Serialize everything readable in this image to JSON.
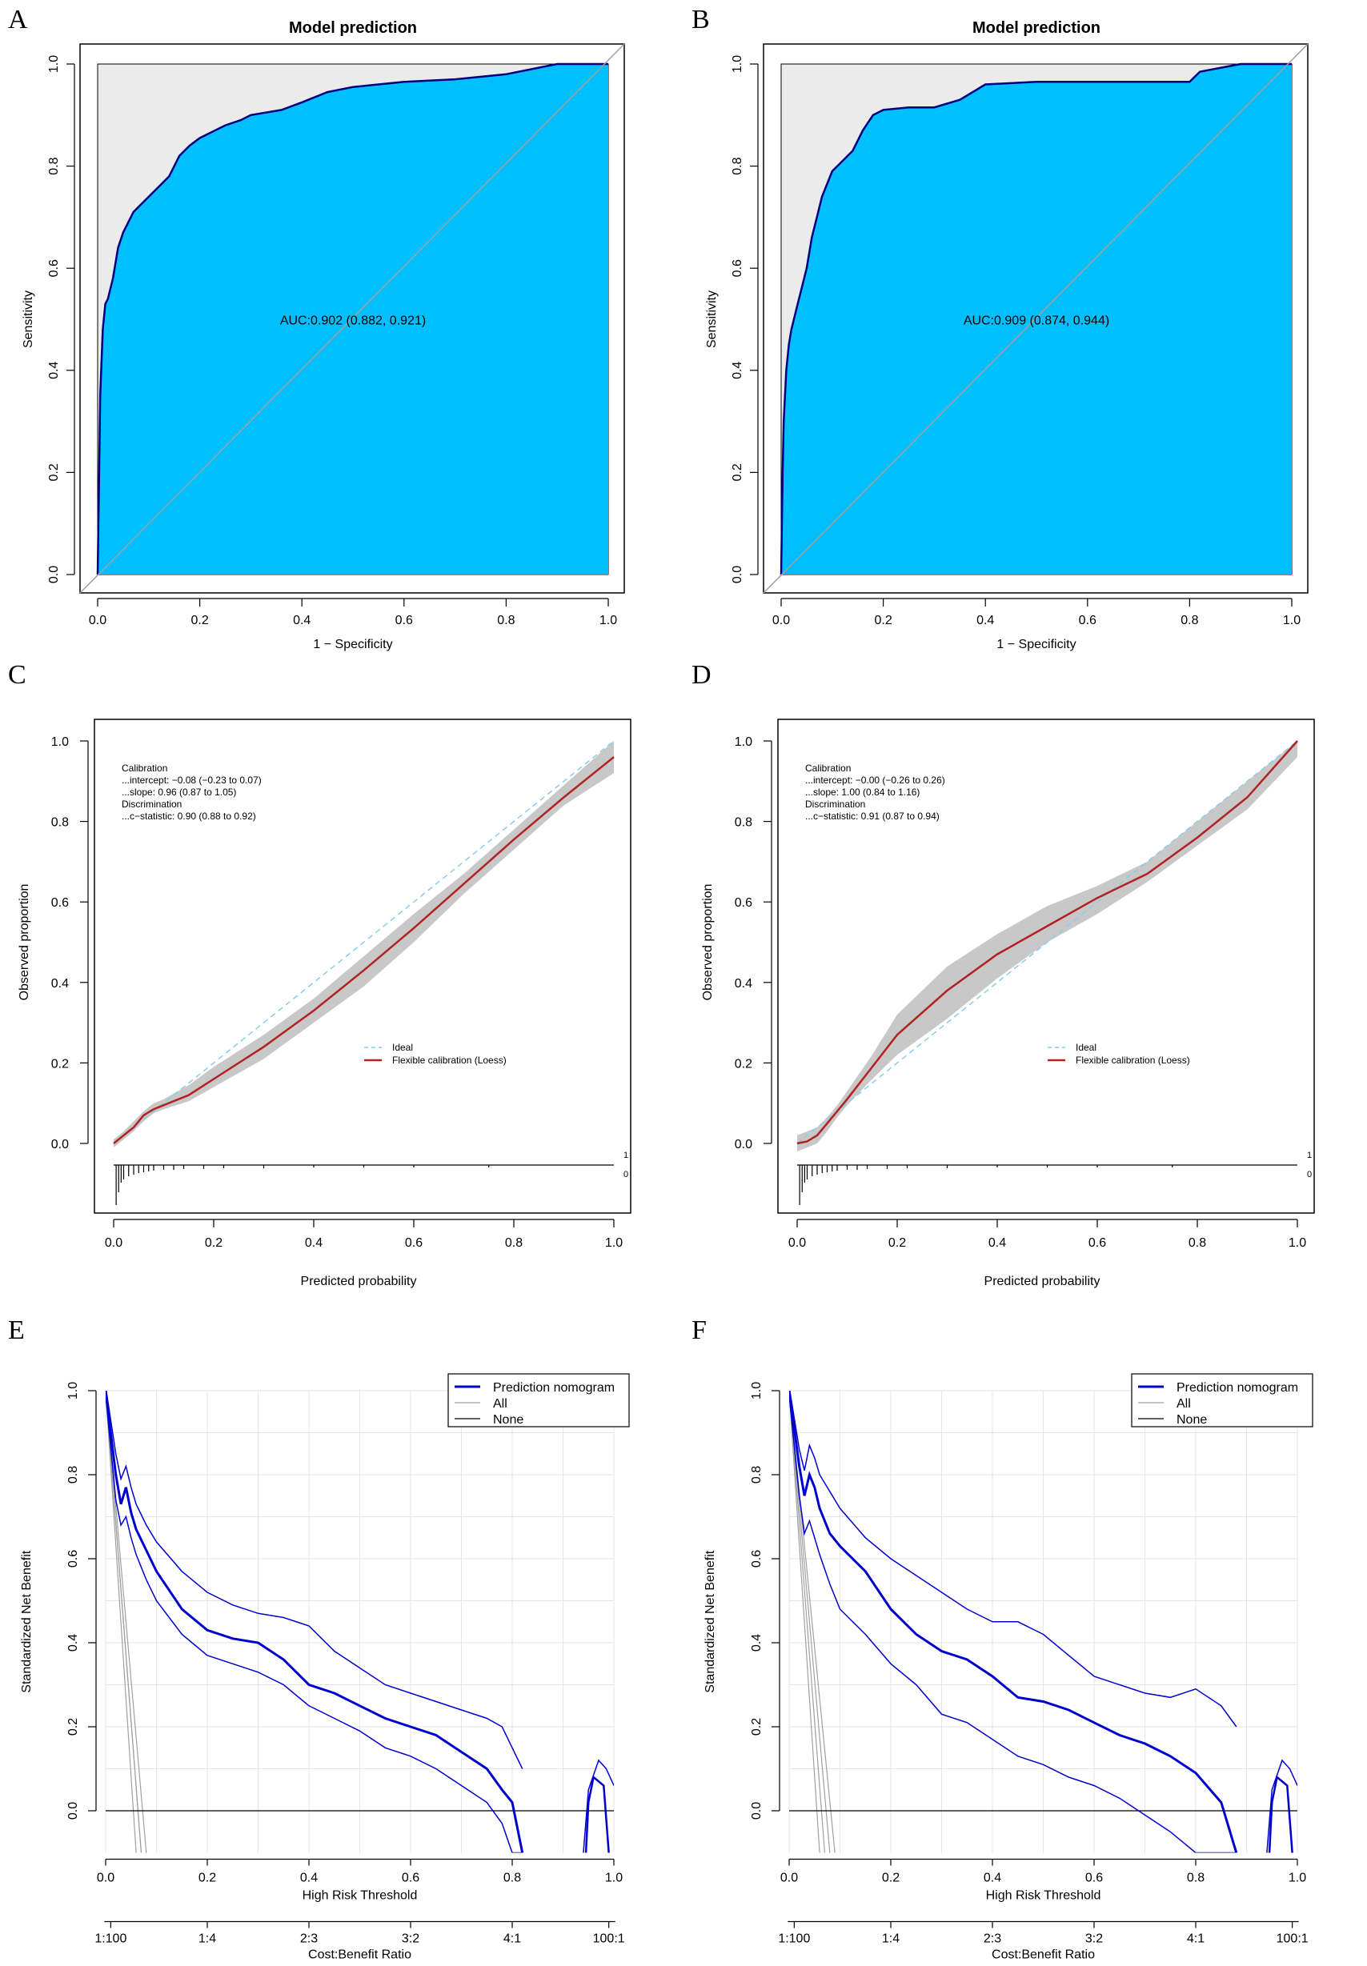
{
  "panels": [
    {
      "id": "A",
      "letter": "A",
      "kind": "roc",
      "title": "Model prediction",
      "xlabel": "1 − Specificity",
      "ylabel": "Sensitivity",
      "annotation": "AUC:0.902 (0.882, 0.921)",
      "ticks_x": [
        "0.0",
        "0.2",
        "0.4",
        "0.6",
        "0.8",
        "1.0"
      ],
      "ticks_y": [
        "0.0",
        "0.2",
        "0.4",
        "0.6",
        "0.8",
        "1.0"
      ]
    },
    {
      "id": "B",
      "letter": "B",
      "kind": "roc",
      "title": "Model prediction",
      "xlabel": "1 − Specificity",
      "ylabel": "Sensitivity",
      "annotation": "AUC:0.909 (0.874, 0.944)",
      "ticks_x": [
        "0.0",
        "0.2",
        "0.4",
        "0.6",
        "0.8",
        "1.0"
      ],
      "ticks_y": [
        "0.0",
        "0.2",
        "0.4",
        "0.6",
        "0.8",
        "1.0"
      ]
    },
    {
      "id": "C",
      "letter": "C",
      "kind": "calibration",
      "xlabel": "Predicted probability",
      "ylabel": "Observed proportion",
      "ticks_x": [
        "0.0",
        "0.2",
        "0.4",
        "0.6",
        "0.8",
        "1.0"
      ],
      "ticks_y": [
        "0.0",
        "0.2",
        "0.4",
        "0.6",
        "0.8",
        "1.0"
      ],
      "stats": [
        "Calibration",
        "...intercept: −0.08 (−0.23 to 0.07)",
        "...slope: 0.96 (0.87 to 1.05)",
        "Discrimination",
        "...c−statistic: 0.90 (0.88 to 0.92)"
      ],
      "legend": [
        "Ideal",
        "Flexible calibration (Loess)"
      ],
      "rug_labels": [
        "1",
        "0"
      ]
    },
    {
      "id": "D",
      "letter": "D",
      "kind": "calibration",
      "xlabel": "Predicted probability",
      "ylabel": "Observed proportion",
      "ticks_x": [
        "0.0",
        "0.2",
        "0.4",
        "0.6",
        "0.8",
        "1.0"
      ],
      "ticks_y": [
        "0.0",
        "0.2",
        "0.4",
        "0.6",
        "0.8",
        "1.0"
      ],
      "stats": [
        "Calibration",
        "...intercept: −0.00 (−0.26 to 0.26)",
        "...slope: 1.00 (0.84 to 1.16)",
        "Discrimination",
        "...c−statistic: 0.91 (0.87 to 0.94)"
      ],
      "legend": [
        "Ideal",
        "Flexible calibration (Loess)"
      ],
      "rug_labels": [
        "1",
        "0"
      ]
    },
    {
      "id": "E",
      "letter": "E",
      "kind": "dca",
      "xlabel": "High Risk Threshold",
      "ylabel": "Standardized Net Benefit",
      "x2label": "Cost:Benefit Ratio",
      "ticks_x": [
        "0.0",
        "0.2",
        "0.4",
        "0.6",
        "0.8",
        "1.0"
      ],
      "ticks_y": [
        "0.0",
        "0.2",
        "0.4",
        "0.6",
        "0.8",
        "1.0"
      ],
      "ticks_x2": [
        "1:100",
        "1:4",
        "2:3",
        "3:2",
        "4:1",
        "100:1"
      ],
      "legend": [
        "Prediction nomogram",
        "All",
        "None"
      ]
    },
    {
      "id": "F",
      "letter": "F",
      "kind": "dca",
      "xlabel": "High Risk Threshold",
      "ylabel": "Standardized Net Benefit",
      "x2label": "Cost:Benefit Ratio",
      "ticks_x": [
        "0.0",
        "0.2",
        "0.4",
        "0.6",
        "0.8",
        "1.0"
      ],
      "ticks_y": [
        "0.0",
        "0.2",
        "0.4",
        "0.6",
        "0.8",
        "1.0"
      ],
      "ticks_x2": [
        "1:100",
        "1:4",
        "2:3",
        "3:2",
        "4:1",
        "100:1"
      ],
      "legend": [
        "Prediction nomogram",
        "All",
        "None"
      ]
    }
  ],
  "colors": {
    "roc_fill": "#00BFFF",
    "roc_line": "#000080",
    "roc_gray": "#EBEBEB",
    "calib_line": "#B22222",
    "calib_band": "#BEBEBE",
    "ideal": "#87CEEB",
    "dca_model": "#0000CD",
    "dca_all": "#A0A0A0",
    "grid": "#E5E5E5"
  },
  "chart_data": [
    {
      "panel": "A",
      "type": "line",
      "subtype": "roc",
      "title": "Model prediction",
      "xlabel": "1 − Specificity",
      "ylabel": "Sensitivity",
      "xlim": [
        0,
        1
      ],
      "ylim": [
        0,
        1
      ],
      "x": [
        0,
        0.003,
        0.005,
        0.01,
        0.015,
        0.02,
        0.03,
        0.04,
        0.05,
        0.06,
        0.07,
        0.08,
        0.1,
        0.12,
        0.14,
        0.16,
        0.18,
        0.2,
        0.22,
        0.25,
        0.28,
        0.3,
        0.33,
        0.36,
        0.4,
        0.45,
        0.5,
        0.55,
        0.6,
        0.7,
        0.8,
        0.85,
        0.9,
        1.0
      ],
      "y": [
        0,
        0.2,
        0.35,
        0.48,
        0.53,
        0.54,
        0.58,
        0.64,
        0.67,
        0.69,
        0.71,
        0.72,
        0.74,
        0.76,
        0.78,
        0.82,
        0.84,
        0.855,
        0.865,
        0.88,
        0.89,
        0.9,
        0.905,
        0.91,
        0.925,
        0.945,
        0.955,
        0.96,
        0.965,
        0.97,
        0.98,
        0.99,
        1.0,
        1.0
      ],
      "auc": 0.902,
      "auc_ci": [
        0.882,
        0.921
      ]
    },
    {
      "panel": "B",
      "type": "line",
      "subtype": "roc",
      "title": "Model prediction",
      "xlabel": "1 − Specificity",
      "ylabel": "Sensitivity",
      "xlim": [
        0,
        1
      ],
      "ylim": [
        0,
        1
      ],
      "x": [
        0,
        0.003,
        0.005,
        0.01,
        0.015,
        0.02,
        0.03,
        0.04,
        0.05,
        0.06,
        0.07,
        0.08,
        0.1,
        0.12,
        0.14,
        0.16,
        0.18,
        0.2,
        0.25,
        0.3,
        0.35,
        0.4,
        0.5,
        0.6,
        0.7,
        0.8,
        0.82,
        0.9,
        1.0
      ],
      "y": [
        0,
        0.2,
        0.3,
        0.4,
        0.45,
        0.48,
        0.52,
        0.56,
        0.6,
        0.66,
        0.7,
        0.74,
        0.79,
        0.81,
        0.83,
        0.87,
        0.9,
        0.91,
        0.915,
        0.915,
        0.93,
        0.96,
        0.965,
        0.965,
        0.965,
        0.965,
        0.985,
        1.0,
        1.0
      ],
      "auc": 0.909,
      "auc_ci": [
        0.874,
        0.944
      ]
    },
    {
      "panel": "C",
      "type": "line",
      "subtype": "calibration",
      "xlabel": "Predicted probability",
      "ylabel": "Observed proportion",
      "xlim": [
        0,
        1
      ],
      "ylim": [
        -0.15,
        1
      ],
      "series": [
        {
          "name": "Ideal",
          "x": [
            0,
            1
          ],
          "y": [
            0,
            1
          ]
        },
        {
          "name": "Flexible calibration (Loess)",
          "x": [
            0,
            0.02,
            0.04,
            0.06,
            0.08,
            0.1,
            0.15,
            0.2,
            0.3,
            0.4,
            0.5,
            0.6,
            0.7,
            0.8,
            0.9,
            1.0
          ],
          "y": [
            0,
            0.02,
            0.04,
            0.07,
            0.085,
            0.095,
            0.12,
            0.16,
            0.24,
            0.33,
            0.43,
            0.535,
            0.645,
            0.755,
            0.86,
            0.96
          ],
          "lower": [
            -0.01,
            0.01,
            0.03,
            0.055,
            0.075,
            0.085,
            0.105,
            0.14,
            0.21,
            0.3,
            0.39,
            0.5,
            0.62,
            0.73,
            0.84,
            0.92
          ],
          "upper": [
            0.01,
            0.03,
            0.055,
            0.08,
            0.1,
            0.11,
            0.145,
            0.19,
            0.27,
            0.36,
            0.465,
            0.57,
            0.67,
            0.78,
            0.89,
            1.0
          ]
        }
      ],
      "stats": {
        "intercept": [
          -0.08,
          -0.23,
          0.07
        ],
        "slope": [
          0.96,
          0.87,
          1.05
        ],
        "c_statistic": [
          0.9,
          0.88,
          0.92
        ]
      }
    },
    {
      "panel": "D",
      "type": "line",
      "subtype": "calibration",
      "xlabel": "Predicted probability",
      "ylabel": "Observed proportion",
      "xlim": [
        0,
        1
      ],
      "ylim": [
        -0.15,
        1
      ],
      "series": [
        {
          "name": "Ideal",
          "x": [
            0,
            1
          ],
          "y": [
            0,
            1
          ]
        },
        {
          "name": "Flexible calibration (Loess)",
          "x": [
            0,
            0.02,
            0.04,
            0.06,
            0.08,
            0.1,
            0.15,
            0.2,
            0.3,
            0.4,
            0.5,
            0.6,
            0.7,
            0.8,
            0.9,
            1.0
          ],
          "y": [
            0,
            0.005,
            0.02,
            0.05,
            0.08,
            0.11,
            0.19,
            0.27,
            0.38,
            0.47,
            0.54,
            0.61,
            0.67,
            0.76,
            0.86,
            1.0
          ],
          "lower": [
            -0.02,
            -0.01,
            0.0,
            0.03,
            0.065,
            0.095,
            0.16,
            0.22,
            0.31,
            0.41,
            0.5,
            0.57,
            0.65,
            0.74,
            0.83,
            0.96
          ],
          "upper": [
            0.02,
            0.03,
            0.04,
            0.065,
            0.095,
            0.13,
            0.22,
            0.32,
            0.44,
            0.52,
            0.59,
            0.64,
            0.7,
            0.8,
            0.9,
            1.0
          ]
        }
      ],
      "stats": {
        "intercept": [
          0.0,
          -0.26,
          0.26
        ],
        "slope": [
          1.0,
          0.84,
          1.16
        ],
        "c_statistic": [
          0.91,
          0.87,
          0.94
        ]
      }
    },
    {
      "panel": "E",
      "type": "line",
      "subtype": "decision-curve",
      "xlabel": "High Risk Threshold",
      "ylabel": "Standardized Net Benefit",
      "xlim": [
        0,
        1
      ],
      "ylim": [
        -0.1,
        1
      ],
      "series": [
        {
          "name": "Prediction nomogram",
          "x": [
            0,
            0.02,
            0.03,
            0.04,
            0.05,
            0.06,
            0.08,
            0.1,
            0.15,
            0.2,
            0.25,
            0.3,
            0.35,
            0.4,
            0.45,
            0.5,
            0.55,
            0.6,
            0.65,
            0.7,
            0.75,
            0.78,
            0.8,
            0.82
          ],
          "y": [
            1.0,
            0.8,
            0.73,
            0.77,
            0.71,
            0.67,
            0.62,
            0.57,
            0.48,
            0.43,
            0.41,
            0.4,
            0.36,
            0.3,
            0.28,
            0.25,
            0.22,
            0.2,
            0.18,
            0.14,
            0.1,
            0.05,
            0.02,
            -0.1
          ],
          "lower": [
            0.99,
            0.74,
            0.68,
            0.7,
            0.65,
            0.61,
            0.55,
            0.5,
            0.42,
            0.37,
            0.35,
            0.33,
            0.3,
            0.25,
            0.22,
            0.19,
            0.15,
            0.13,
            0.1,
            0.06,
            0.02,
            -0.03,
            -0.1,
            -0.1
          ],
          "upper": [
            1.01,
            0.85,
            0.79,
            0.82,
            0.77,
            0.73,
            0.68,
            0.64,
            0.57,
            0.52,
            0.49,
            0.47,
            0.46,
            0.44,
            0.38,
            0.34,
            0.3,
            0.28,
            0.26,
            0.24,
            0.22,
            0.2,
            0.15,
            0.1
          ]
        },
        {
          "name": "All",
          "x": [
            0,
            0.07
          ],
          "y": [
            1.0,
            -0.1
          ]
        },
        {
          "name": "None",
          "x": [
            0,
            1
          ],
          "y": [
            0,
            0
          ]
        }
      ]
    },
    {
      "panel": "F",
      "type": "line",
      "subtype": "decision-curve",
      "xlabel": "High Risk Threshold",
      "ylabel": "Standardized Net Benefit",
      "xlim": [
        0,
        1
      ],
      "ylim": [
        -0.1,
        1
      ],
      "series": [
        {
          "name": "Prediction nomogram",
          "x": [
            0,
            0.02,
            0.03,
            0.04,
            0.05,
            0.06,
            0.08,
            0.1,
            0.15,
            0.2,
            0.25,
            0.3,
            0.35,
            0.4,
            0.45,
            0.5,
            0.55,
            0.6,
            0.65,
            0.7,
            0.75,
            0.8,
            0.85,
            0.88
          ],
          "y": [
            1.0,
            0.82,
            0.75,
            0.8,
            0.77,
            0.72,
            0.66,
            0.63,
            0.57,
            0.48,
            0.42,
            0.38,
            0.36,
            0.32,
            0.27,
            0.26,
            0.24,
            0.21,
            0.18,
            0.16,
            0.13,
            0.09,
            0.02,
            -0.1
          ],
          "lower": [
            0.99,
            0.75,
            0.66,
            0.69,
            0.65,
            0.61,
            0.54,
            0.48,
            0.42,
            0.35,
            0.3,
            0.23,
            0.21,
            0.17,
            0.13,
            0.11,
            0.08,
            0.06,
            0.03,
            -0.01,
            -0.05,
            -0.1,
            -0.1,
            -0.1
          ],
          "upper": [
            1.01,
            0.86,
            0.81,
            0.87,
            0.84,
            0.8,
            0.76,
            0.72,
            0.65,
            0.6,
            0.56,
            0.52,
            0.48,
            0.45,
            0.45,
            0.42,
            0.37,
            0.32,
            0.3,
            0.28,
            0.27,
            0.29,
            0.25,
            0.2
          ]
        },
        {
          "name": "All",
          "x": [
            0,
            0.08
          ],
          "y": [
            1.0,
            -0.1
          ]
        },
        {
          "name": "None",
          "x": [
            0,
            1
          ],
          "y": [
            0,
            0
          ]
        }
      ]
    }
  ]
}
